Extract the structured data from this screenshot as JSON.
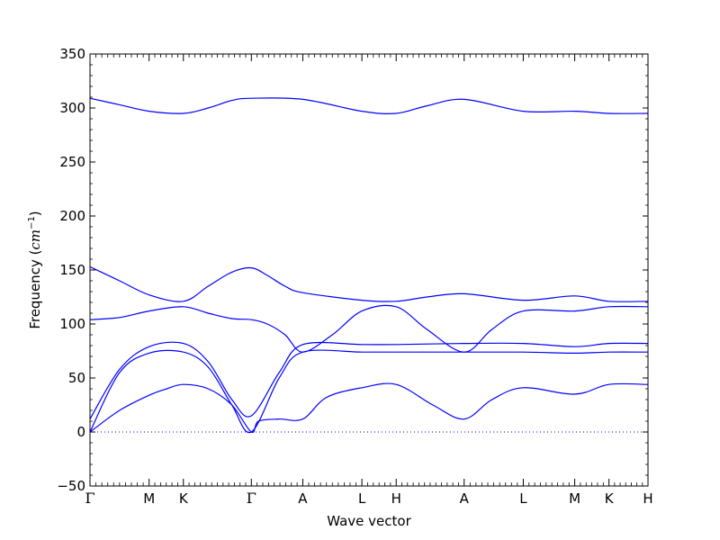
{
  "chart_data": {
    "type": "line",
    "title": "",
    "xlabel": "Wave vector",
    "ylabel": "Frequency (cm⁻¹)",
    "ylabel_text": "Frequency (",
    "ylabel_unit": "cm",
    "ylabel_exp": "−1",
    "ylabel_close": ")",
    "ylim": [
      -50,
      350
    ],
    "yticks": [
      -50,
      0,
      50,
      100,
      150,
      200,
      250,
      300,
      350
    ],
    "ytick_labels": [
      "−50",
      "0",
      "50",
      "100",
      "150",
      "200",
      "250",
      "300",
      "350"
    ],
    "xlim": [
      0,
      9.44
    ],
    "high_symmetry_points": [
      {
        "label": "Γ",
        "x": 0.0
      },
      {
        "label": "M",
        "x": 1.0
      },
      {
        "label": "K",
        "x": 1.58
      },
      {
        "label": "Γ",
        "x": 2.73
      },
      {
        "label": "A",
        "x": 3.6
      },
      {
        "label": "L",
        "x": 4.6
      },
      {
        "label": "H",
        "x": 5.18
      },
      {
        "label": "A",
        "x": 6.33
      },
      {
        "label": "L",
        "x": 7.33
      },
      {
        "label": "M",
        "x": 8.2
      },
      {
        "label": "K",
        "x": 8.78
      },
      {
        "label": "H",
        "x": 9.44
      }
    ],
    "zero_line": {
      "y": 0,
      "style": "dotted",
      "color": "#0000ff"
    },
    "line_color": "#0000ff",
    "grid": false,
    "series": [
      {
        "values": [
          [
            0,
            0
          ],
          [
            0.5,
            20
          ],
          [
            1.0,
            34
          ],
          [
            1.3,
            40
          ],
          [
            1.58,
            44
          ],
          [
            2.0,
            40
          ],
          [
            2.4,
            25
          ],
          [
            2.73,
            0
          ],
          [
            2.85,
            10
          ],
          [
            3.2,
            12
          ],
          [
            3.6,
            12
          ],
          [
            4.0,
            32
          ],
          [
            4.6,
            41
          ],
          [
            5.18,
            44
          ],
          [
            5.8,
            25
          ],
          [
            6.33,
            12
          ],
          [
            6.8,
            30
          ],
          [
            7.33,
            41
          ],
          [
            8.2,
            35
          ],
          [
            8.78,
            44
          ],
          [
            9.44,
            44
          ]
        ]
      },
      {
        "values": [
          [
            0,
            0
          ],
          [
            0.5,
            55
          ],
          [
            1.0,
            73
          ],
          [
            1.58,
            74
          ],
          [
            2.0,
            60
          ],
          [
            2.4,
            25
          ],
          [
            2.73,
            0
          ],
          [
            3.2,
            50
          ],
          [
            3.6,
            74
          ],
          [
            4.6,
            74
          ],
          [
            5.18,
            74
          ],
          [
            6.33,
            74
          ],
          [
            7.33,
            74
          ],
          [
            8.2,
            73
          ],
          [
            8.78,
            74
          ],
          [
            9.44,
            74
          ]
        ]
      },
      {
        "values": [
          [
            0,
            12
          ],
          [
            0.5,
            58
          ],
          [
            1.0,
            79
          ],
          [
            1.58,
            82
          ],
          [
            2.0,
            65
          ],
          [
            2.4,
            30
          ],
          [
            2.73,
            15
          ],
          [
            3.2,
            55
          ],
          [
            3.6,
            81
          ],
          [
            4.6,
            81
          ],
          [
            5.18,
            81
          ],
          [
            6.33,
            82
          ],
          [
            7.33,
            82
          ],
          [
            8.2,
            79
          ],
          [
            8.78,
            82
          ],
          [
            9.44,
            82
          ]
        ]
      },
      {
        "values": [
          [
            0,
            104
          ],
          [
            0.5,
            106
          ],
          [
            1.0,
            112
          ],
          [
            1.58,
            116
          ],
          [
            2.0,
            110
          ],
          [
            2.4,
            105
          ],
          [
            2.73,
            104
          ],
          [
            3.0,
            100
          ],
          [
            3.3,
            90
          ],
          [
            3.6,
            74
          ],
          [
            4.1,
            90
          ],
          [
            4.6,
            112
          ],
          [
            5.18,
            116
          ],
          [
            5.7,
            95
          ],
          [
            6.33,
            74
          ],
          [
            6.8,
            95
          ],
          [
            7.33,
            112
          ],
          [
            8.2,
            112
          ],
          [
            8.78,
            116
          ],
          [
            9.44,
            116
          ]
        ]
      },
      {
        "values": [
          [
            0,
            153
          ],
          [
            0.5,
            140
          ],
          [
            1.0,
            127
          ],
          [
            1.58,
            121
          ],
          [
            2.0,
            135
          ],
          [
            2.4,
            148
          ],
          [
            2.73,
            152
          ],
          [
            3.0,
            145
          ],
          [
            3.3,
            135
          ],
          [
            3.6,
            129
          ],
          [
            4.6,
            122
          ],
          [
            5.18,
            121
          ],
          [
            5.7,
            125
          ],
          [
            6.33,
            128
          ],
          [
            7.33,
            122
          ],
          [
            8.2,
            126
          ],
          [
            8.78,
            121
          ],
          [
            9.44,
            121
          ]
        ]
      },
      {
        "values": [
          [
            0,
            309
          ],
          [
            0.5,
            303
          ],
          [
            1.0,
            297
          ],
          [
            1.58,
            295
          ],
          [
            2.0,
            300
          ],
          [
            2.4,
            307
          ],
          [
            2.73,
            309
          ],
          [
            3.6,
            308
          ],
          [
            4.6,
            297
          ],
          [
            5.18,
            295
          ],
          [
            5.7,
            302
          ],
          [
            6.33,
            308
          ],
          [
            7.33,
            297
          ],
          [
            8.2,
            297
          ],
          [
            8.78,
            295
          ],
          [
            9.44,
            295
          ]
        ]
      }
    ]
  }
}
